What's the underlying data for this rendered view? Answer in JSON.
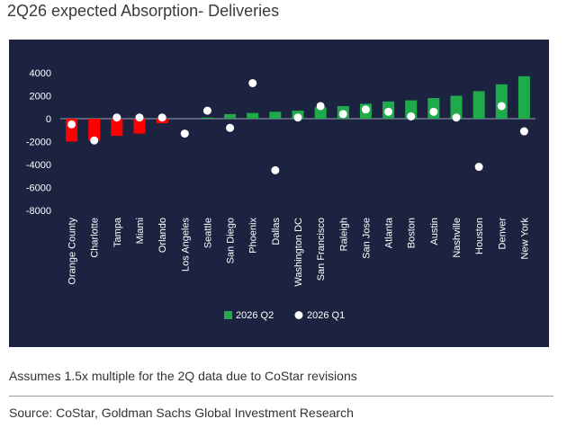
{
  "page": {
    "title": "2Q26 expected Absorption- Deliveries",
    "footnote": "Assumes 1.5x multiple for the 2Q data due to CoStar revisions",
    "source": "Source: CoStar, Goldman Sachs Global Investment Research"
  },
  "chart_data": {
    "type": "bar",
    "title": "",
    "xlabel": "",
    "ylabel": "",
    "ylim": [
      -8000,
      4000
    ],
    "yticks": [
      4000,
      2000,
      0,
      -2000,
      -4000,
      -6000,
      -8000
    ],
    "grid": false,
    "legend_position": "bottom-center",
    "background_color": "#1c2340",
    "categories": [
      "Orange County",
      "Charlotte",
      "Tampa",
      "Miami",
      "Orlando",
      "Los Angeles",
      "Seattle",
      "San Diego",
      "Phoenix",
      "Dallas",
      "Washington DC",
      "San Francisco",
      "Raleigh",
      "San Jose",
      "Atlanta",
      "Boston",
      "Austin",
      "Nashville",
      "Houston",
      "Denver",
      "New York"
    ],
    "series": [
      {
        "name": "2026 Q2",
        "kind": "bar",
        "color": "#1faa4b",
        "negative_color": "#ff0000",
        "values": [
          -2000,
          -1900,
          -1500,
          -1300,
          -400,
          0,
          100,
          400,
          500,
          600,
          700,
          1000,
          1100,
          1300,
          1500,
          1600,
          1800,
          2000,
          2400,
          3000,
          3700
        ]
      },
      {
        "name": "2026 Q1",
        "kind": "scatter",
        "color": "#ffffff",
        "values": [
          -500,
          -1900,
          100,
          100,
          100,
          -1300,
          700,
          -800,
          3100,
          -4500,
          100,
          1100,
          400,
          800,
          600,
          200,
          600,
          100,
          -4200,
          1100,
          -1100
        ]
      }
    ]
  }
}
